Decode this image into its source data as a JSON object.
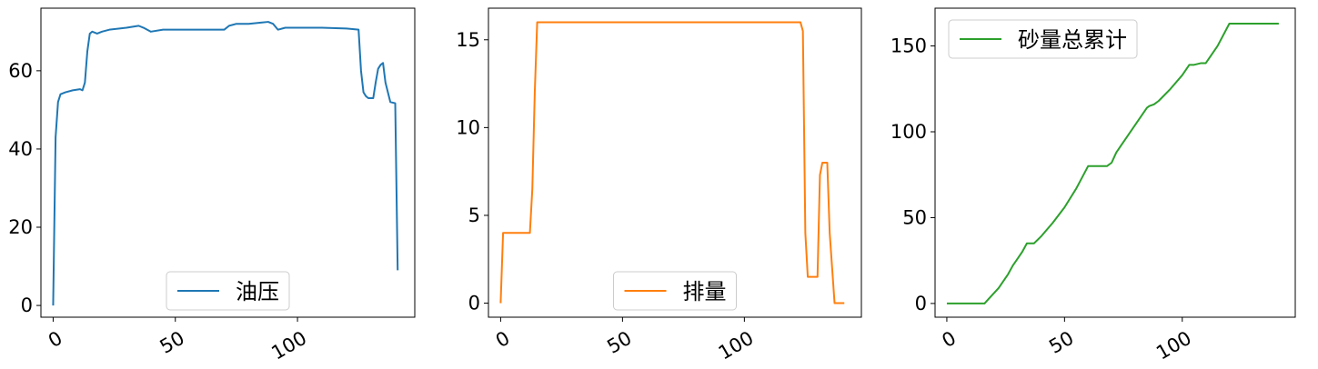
{
  "chart_data": [
    {
      "type": "line",
      "series": [
        {
          "name": "油压",
          "color": "#1f77b4",
          "x": [
            0,
            1,
            2,
            3,
            5,
            8,
            11,
            12,
            13,
            14,
            15,
            16,
            18,
            20,
            23,
            30,
            35,
            37,
            40,
            45,
            50,
            60,
            70,
            72,
            75,
            80,
            85,
            88,
            90,
            92,
            95,
            100,
            110,
            120,
            125,
            126,
            127,
            128,
            129,
            131,
            132,
            133,
            134,
            135,
            136,
            138,
            140,
            141
          ],
          "y": [
            0,
            43,
            52,
            54,
            54.5,
            55,
            55.3,
            55,
            57,
            65,
            69.5,
            70,
            69.5,
            70,
            70.5,
            71,
            71.5,
            71,
            70,
            70.5,
            70.5,
            70.5,
            70.5,
            71.5,
            72,
            72,
            72.3,
            72.5,
            72,
            70.5,
            71,
            71,
            71,
            70.8,
            70.5,
            60,
            54.5,
            53.5,
            53,
            53,
            57,
            60.5,
            61.5,
            62,
            57,
            52,
            51.7,
            9
          ]
        }
      ],
      "xlim": [
        -5,
        148
      ],
      "ylim": [
        -3,
        76
      ],
      "xticks": [
        0,
        50,
        100
      ],
      "yticks": [
        0,
        20,
        40,
        60
      ],
      "xtick_labels": [
        "0",
        "50",
        "100"
      ],
      "ytick_labels": [
        "0",
        "20",
        "40",
        "60"
      ],
      "legend": "lower center"
    },
    {
      "type": "line",
      "series": [
        {
          "name": "排量",
          "color": "#ff7f0e",
          "x": [
            0,
            1,
            2,
            5,
            8,
            12,
            13,
            14,
            15,
            16,
            20,
            50,
            100,
            123,
            124,
            125,
            126,
            127,
            128,
            130,
            131,
            132,
            133,
            134,
            135,
            136,
            137,
            138,
            139,
            140,
            141
          ],
          "y": [
            0,
            4,
            4,
            4,
            4,
            4,
            6.5,
            12,
            16,
            16,
            16,
            16,
            16,
            16,
            15.5,
            4,
            1.5,
            1.5,
            1.5,
            1.5,
            7.3,
            8,
            8,
            8,
            4,
            2,
            0,
            0,
            0,
            0,
            0
          ]
        }
      ],
      "xlim": [
        -5,
        148
      ],
      "ylim": [
        -0.8,
        16.8
      ],
      "xticks": [
        0,
        50,
        100
      ],
      "yticks": [
        0,
        5,
        10,
        15
      ],
      "xtick_labels": [
        "0",
        "50",
        "100"
      ],
      "ytick_labels": [
        "0",
        "5",
        "10",
        "15"
      ],
      "legend": "lower center"
    },
    {
      "type": "line",
      "series": [
        {
          "name": "砂量总累计",
          "color": "#2ca02c",
          "x": [
            0,
            5,
            10,
            16,
            18,
            20,
            22,
            25,
            26,
            28,
            30,
            32,
            34,
            35,
            37,
            40,
            45,
            50,
            55,
            60,
            65,
            68,
            70,
            71,
            72,
            73,
            74,
            75,
            80,
            85,
            86,
            88,
            90,
            95,
            100,
            103,
            105,
            108,
            110,
            115,
            120,
            125,
            130,
            135,
            141
          ],
          "y": [
            0,
            0,
            0,
            0,
            3,
            6,
            9,
            15,
            17,
            22,
            26,
            30,
            35,
            35,
            35,
            39,
            47,
            56,
            67,
            80,
            80,
            80,
            82,
            85,
            88,
            90,
            92,
            94,
            104,
            114,
            115,
            116,
            118,
            125,
            133,
            139,
            139,
            140,
            140,
            150,
            163,
            163,
            163,
            163,
            163
          ]
        }
      ],
      "xlim": [
        -5,
        148
      ],
      "ylim": [
        -8,
        172
      ],
      "xticks": [
        0,
        50,
        100
      ],
      "yticks": [
        0,
        50,
        100,
        150
      ],
      "xtick_labels": [
        "0",
        "50",
        "100"
      ],
      "ytick_labels": [
        "0",
        "50",
        "100",
        "150"
      ],
      "legend": "upper left"
    }
  ]
}
